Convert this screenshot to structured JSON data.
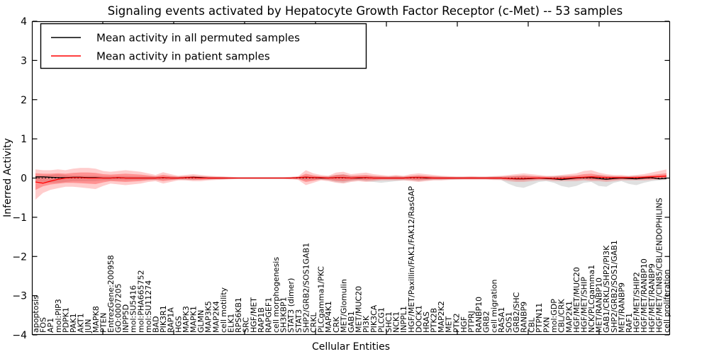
{
  "figure": {
    "title": "Signaling events activated by Hepatocyte Growth Factor Receptor (c-Met) -- 53 samples",
    "xlabel": "Cellular Entities",
    "ylabel": "Inferred Activity"
  },
  "legend": {
    "entries": [
      {
        "label": "Mean activity in all permuted samples",
        "color": "#000000"
      },
      {
        "label": "Mean activity in patient samples",
        "color": "#ff0000"
      }
    ],
    "position": "upper left"
  },
  "chart_data": {
    "type": "line",
    "title": "Signaling events activated by Hepatocyte Growth Factor Receptor (c-Met) -- 53 samples",
    "xlabel": "Cellular Entities",
    "ylabel": "Inferred Activity",
    "ylim": [
      -4,
      4
    ],
    "yticks": [
      -4,
      -3,
      -2,
      -1,
      0,
      1,
      2,
      3,
      4
    ],
    "grid": false,
    "legend_position": "upper left",
    "zero_line": {
      "y": 0,
      "style": "dotted",
      "color": "#000000"
    },
    "categories": [
      "apoptosis",
      "FOS",
      "AP1",
      "mol:PIP3",
      "PDPK1",
      "PAK1",
      "AKT1",
      "JUN",
      "MAPK8",
      "PTEN",
      "EntrezGene:200958",
      "GO:0007205",
      "INPP5D",
      "mol:SU5416",
      "mol:PHA665752",
      "mol:SU11274",
      "BAD",
      "PIK3R1",
      "RAP1A",
      "HGS",
      "MAPK3",
      "MAPK1",
      "GLMN",
      "MAP3K5",
      "MAP2K4",
      "cell motility",
      "ELK1",
      "RPS6KB1",
      "SRC",
      "HGF/MET",
      "RAP1B",
      "RAPGEF1",
      "cell morphogenesis",
      "SH3KBP1",
      "STAT3 (dimer)",
      "STAT3",
      "SHP2/GRB2/SOS1GAB1",
      "CRKL",
      "PLCgamma1/PKC",
      "MAP4K1",
      "CRK",
      "MET/Glomulin",
      "GAB1",
      "MET/MUC20",
      "PI3K",
      "PIK3CA",
      "PLCG1",
      "SHC1",
      "NCK1",
      "INPPL1",
      "HGF/MET/Paxillin/FAK1/FAK12/RasGAP",
      "DOCK1",
      "HRAS",
      "PTK2B",
      "MAP2K2",
      "MET",
      "PTK2",
      "HGF",
      "PTPRJ",
      "RANBP10",
      "GRB2",
      "cell migration",
      "RASA1",
      "SOS1",
      "GRB2/SHC",
      "RANBP9",
      "CBL",
      "PTPN11",
      "PXN",
      "mol:GDP",
      "CBL/CRK",
      "MAP2K1",
      "HGF/MET/MUC20",
      "HGF/MET/SHIP",
      "NCK/PLCgamma1",
      "MET/RANBP10",
      "GAB1/CRKL/SHP2/PI3K",
      "SHP2/GRB2/SOS1/GAB1",
      "MET/RANBP9",
      "RAF1",
      "HGF/MET/SHIP2",
      "HGF/MET/RANBP10",
      "HGF/MET/RANBP9",
      "HGF/MET/CIN85/CBL/ENDOPHILINS",
      "cell proliferation"
    ],
    "series": [
      {
        "name": "Mean activity in all permuted samples",
        "color": "#000000",
        "values": [
          0.03,
          0.03,
          0.02,
          0.01,
          0.01,
          0.02,
          0.02,
          0.01,
          0.01,
          0.0,
          0.0,
          0.01,
          0.0,
          0.0,
          0.0,
          0.0,
          0.0,
          0.01,
          0.0,
          0.0,
          0.01,
          0.02,
          0.01,
          0.0,
          0.0,
          0.0,
          0.0,
          0.0,
          0.0,
          0.0,
          0.0,
          0.0,
          0.0,
          0.0,
          0.0,
          0.01,
          0.02,
          0.01,
          0.0,
          0.0,
          0.01,
          0.01,
          0.0,
          0.0,
          0.01,
          0.0,
          0.0,
          0.0,
          0.0,
          0.0,
          0.01,
          0.01,
          0.0,
          0.0,
          0.0,
          0.0,
          0.0,
          0.0,
          0.0,
          0.0,
          0.0,
          0.0,
          0.0,
          -0.01,
          -0.02,
          -0.02,
          -0.01,
          0.0,
          -0.01,
          -0.02,
          -0.04,
          -0.02,
          0.0,
          0.01,
          0.01,
          -0.01,
          -0.03,
          -0.01,
          0.0,
          -0.01,
          -0.02,
          0.0,
          0.01,
          -0.02,
          -0.01
        ]
      },
      {
        "name": "Mean activity in patient samples",
        "color": "#ff0000",
        "values": [
          -0.1,
          -0.13,
          -0.08,
          -0.03,
          0.0,
          0.01,
          0.01,
          0.0,
          0.0,
          0.0,
          0.0,
          0.01,
          0.0,
          0.0,
          0.0,
          0.0,
          0.0,
          0.01,
          0.0,
          0.0,
          0.01,
          0.01,
          0.0,
          0.0,
          0.0,
          0.0,
          0.0,
          0.0,
          0.0,
          0.0,
          0.0,
          0.0,
          0.0,
          0.0,
          0.0,
          0.01,
          0.02,
          0.01,
          0.01,
          0.0,
          0.01,
          0.01,
          0.0,
          0.01,
          0.01,
          0.0,
          0.0,
          0.0,
          0.0,
          0.0,
          0.01,
          0.01,
          0.01,
          0.0,
          0.0,
          0.0,
          0.0,
          0.0,
          0.0,
          0.0,
          0.0,
          0.0,
          0.0,
          -0.01,
          -0.01,
          -0.01,
          0.0,
          0.0,
          0.0,
          -0.01,
          -0.01,
          0.0,
          0.01,
          0.02,
          0.03,
          0.02,
          0.01,
          0.01,
          0.01,
          0.01,
          0.01,
          0.02,
          0.03,
          0.04,
          0.05
        ]
      }
    ],
    "bands": [
      {
        "name": "permuted-samples-range",
        "color": "#999999",
        "opacity": 0.3,
        "upper": [
          0.06,
          0.06,
          0.08,
          0.1,
          0.08,
          0.06,
          0.06,
          0.06,
          0.06,
          0.05,
          0.05,
          0.05,
          0.05,
          0.04,
          0.04,
          0.04,
          0.04,
          0.04,
          0.04,
          0.04,
          0.05,
          0.05,
          0.04,
          0.04,
          0.03,
          0.03,
          0.02,
          0.02,
          0.02,
          0.02,
          0.02,
          0.02,
          0.02,
          0.02,
          0.02,
          0.03,
          0.06,
          0.05,
          0.04,
          0.05,
          0.08,
          0.1,
          0.06,
          0.05,
          0.06,
          0.05,
          0.04,
          0.04,
          0.05,
          0.04,
          0.05,
          0.06,
          0.05,
          0.04,
          0.04,
          0.03,
          0.03,
          0.03,
          0.03,
          0.03,
          0.03,
          0.04,
          0.04,
          0.05,
          0.06,
          0.06,
          0.05,
          0.04,
          0.04,
          0.05,
          0.06,
          0.06,
          0.05,
          0.05,
          0.06,
          0.08,
          0.06,
          0.05,
          0.04,
          0.05,
          0.06,
          0.05,
          0.04,
          0.04,
          0.03
        ],
        "lower": [
          -0.08,
          -0.1,
          -0.12,
          -0.12,
          -0.1,
          -0.08,
          -0.08,
          -0.08,
          -0.08,
          -0.06,
          -0.06,
          -0.06,
          -0.06,
          -0.05,
          -0.05,
          -0.05,
          -0.05,
          -0.05,
          -0.04,
          -0.04,
          -0.05,
          -0.05,
          -0.04,
          -0.04,
          -0.03,
          -0.03,
          -0.02,
          -0.02,
          -0.02,
          -0.02,
          -0.02,
          -0.02,
          -0.02,
          -0.02,
          -0.02,
          -0.03,
          -0.06,
          -0.05,
          -0.04,
          -0.06,
          -0.1,
          -0.12,
          -0.08,
          -0.06,
          -0.08,
          -0.1,
          -0.12,
          -0.1,
          -0.08,
          -0.06,
          -0.06,
          -0.08,
          -0.06,
          -0.05,
          -0.05,
          -0.04,
          -0.04,
          -0.03,
          -0.03,
          -0.03,
          -0.03,
          -0.04,
          -0.05,
          -0.15,
          -0.22,
          -0.25,
          -0.18,
          -0.1,
          -0.08,
          -0.12,
          -0.2,
          -0.24,
          -0.2,
          -0.12,
          -0.1,
          -0.2,
          -0.22,
          -0.12,
          -0.08,
          -0.15,
          -0.18,
          -0.12,
          -0.08,
          -0.06,
          -0.05
        ]
      },
      {
        "name": "patient-samples-range",
        "color": "#ff1a1a",
        "opacity": 0.22,
        "inner_scale": 0.55,
        "inner_opacity": 0.33,
        "upper": [
          0.22,
          0.2,
          0.2,
          0.22,
          0.2,
          0.24,
          0.26,
          0.26,
          0.24,
          0.18,
          0.16,
          0.18,
          0.2,
          0.18,
          0.16,
          0.12,
          0.08,
          0.15,
          0.1,
          0.06,
          0.08,
          0.1,
          0.08,
          0.06,
          0.05,
          0.04,
          0.03,
          0.02,
          0.02,
          0.02,
          0.02,
          0.02,
          0.02,
          0.02,
          0.03,
          0.05,
          0.2,
          0.12,
          0.08,
          0.06,
          0.14,
          0.16,
          0.1,
          0.12,
          0.14,
          0.1,
          0.08,
          0.06,
          0.08,
          0.06,
          0.1,
          0.12,
          0.1,
          0.08,
          0.06,
          0.05,
          0.04,
          0.04,
          0.05,
          0.04,
          0.04,
          0.05,
          0.06,
          0.08,
          0.1,
          0.12,
          0.1,
          0.08,
          0.06,
          0.06,
          0.08,
          0.1,
          0.12,
          0.18,
          0.2,
          0.14,
          0.1,
          0.08,
          0.08,
          0.06,
          0.08,
          0.1,
          0.14,
          0.18,
          0.22
        ],
        "lower": [
          -0.55,
          -0.38,
          -0.3,
          -0.26,
          -0.22,
          -0.22,
          -0.24,
          -0.26,
          -0.28,
          -0.2,
          -0.14,
          -0.16,
          -0.18,
          -0.16,
          -0.14,
          -0.1,
          -0.08,
          -0.14,
          -0.1,
          -0.06,
          -0.06,
          -0.08,
          -0.08,
          -0.06,
          -0.05,
          -0.04,
          -0.03,
          -0.02,
          -0.02,
          -0.02,
          -0.02,
          -0.02,
          -0.02,
          -0.02,
          -0.03,
          -0.05,
          -0.18,
          -0.12,
          -0.06,
          -0.08,
          -0.12,
          -0.14,
          -0.1,
          -0.08,
          -0.1,
          -0.08,
          -0.06,
          -0.06,
          -0.06,
          -0.06,
          -0.08,
          -0.1,
          -0.08,
          -0.06,
          -0.06,
          -0.05,
          -0.04,
          -0.04,
          -0.04,
          -0.04,
          -0.04,
          -0.05,
          -0.05,
          -0.08,
          -0.1,
          -0.1,
          -0.08,
          -0.06,
          -0.06,
          -0.08,
          -0.08,
          -0.08,
          -0.08,
          -0.06,
          -0.08,
          -0.08,
          -0.1,
          -0.08,
          -0.06,
          -0.06,
          -0.06,
          -0.06,
          -0.05,
          -0.04,
          -0.03
        ]
      }
    ]
  }
}
